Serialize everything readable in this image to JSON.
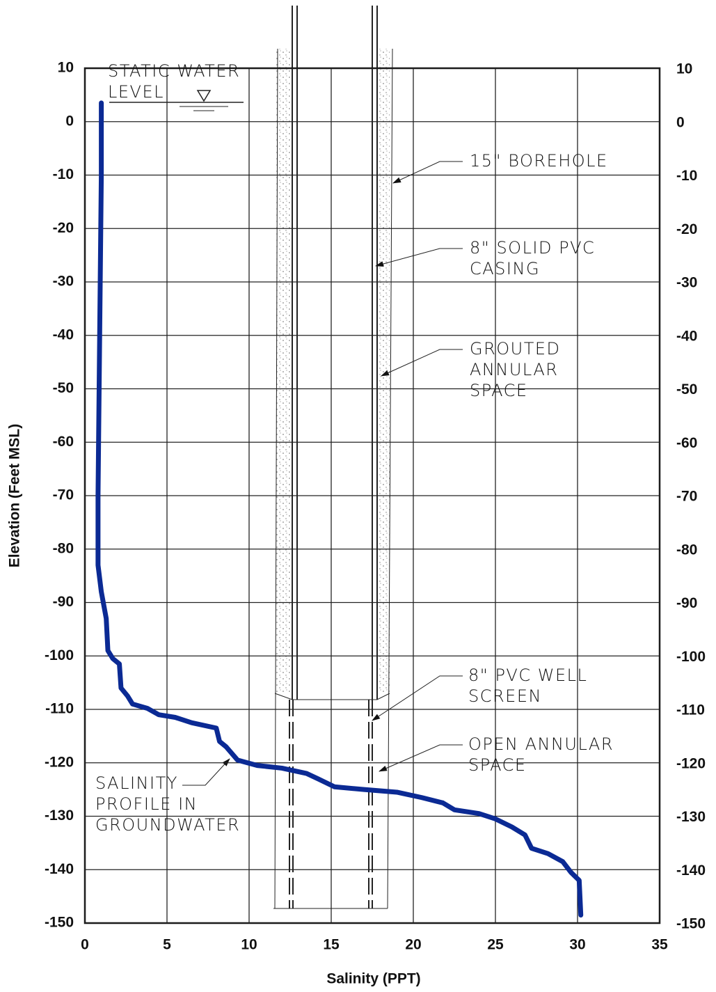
{
  "chart_data": {
    "type": "line",
    "x_label": "Salinity (PPT)",
    "y_label": "Elevation (Feet MSL)",
    "xlim": [
      0,
      35
    ],
    "xticks": [
      0,
      5,
      10,
      15,
      20,
      25,
      30,
      35
    ],
    "ylim": [
      -150,
      10
    ],
    "yticks": [
      10,
      0,
      -10,
      -20,
      -30,
      -40,
      -50,
      -60,
      -70,
      -80,
      -90,
      -100,
      -110,
      -120,
      -130,
      -140,
      -150
    ],
    "grid": true,
    "series": [
      {
        "color": "#0b2a94",
        "x": [
          1.0,
          1.0,
          0.9,
          0.8,
          0.8,
          1.0,
          1.3,
          1.4,
          1.7,
          2.1,
          2.2,
          2.6,
          2.9,
          3.8,
          4.5,
          5.5,
          6.5,
          8.0,
          8.2,
          8.6,
          9.3,
          10.5,
          12,
          13.5,
          14.2,
          15.2,
          17,
          19,
          20.5,
          21.8,
          22.5,
          24,
          25,
          26,
          26.8,
          27.2,
          28.2,
          29.1,
          29.6,
          30.1,
          30.2
        ],
        "values": [
          3.5,
          -10,
          -40,
          -70,
          -83,
          -88,
          -93,
          -99,
          -100.5,
          -101.5,
          -106,
          -107.5,
          -109,
          -109.8,
          -111,
          -111.5,
          -112.5,
          -113.5,
          -116,
          -117,
          -119.5,
          -120.5,
          -121,
          -122,
          -123,
          -124.5,
          -125,
          -125.5,
          -126.5,
          -127.5,
          -128.8,
          -129.5,
          -130.5,
          -132,
          -133.5,
          -136,
          -137,
          -138.5,
          -140.5,
          -142,
          -148.5
        ]
      }
    ],
    "annotations": [
      {
        "lines": [
          "STATIC WATER",
          "LEVEL"
        ]
      },
      {
        "lines": [
          "15\" BOREHOLE"
        ]
      },
      {
        "lines": [
          "8\" SOLID PVC",
          "CASING"
        ]
      },
      {
        "lines": [
          "GROUTED",
          "ANNULAR",
          "SPACE"
        ]
      },
      {
        "lines": [
          "8\" PVC WELL",
          "SCREEN"
        ]
      },
      {
        "lines": [
          "OPEN ANNULAR",
          "SPACE"
        ]
      },
      {
        "lines": [
          "SALINITY",
          "PROFILE IN",
          "GROUNDWATER"
        ]
      }
    ]
  }
}
